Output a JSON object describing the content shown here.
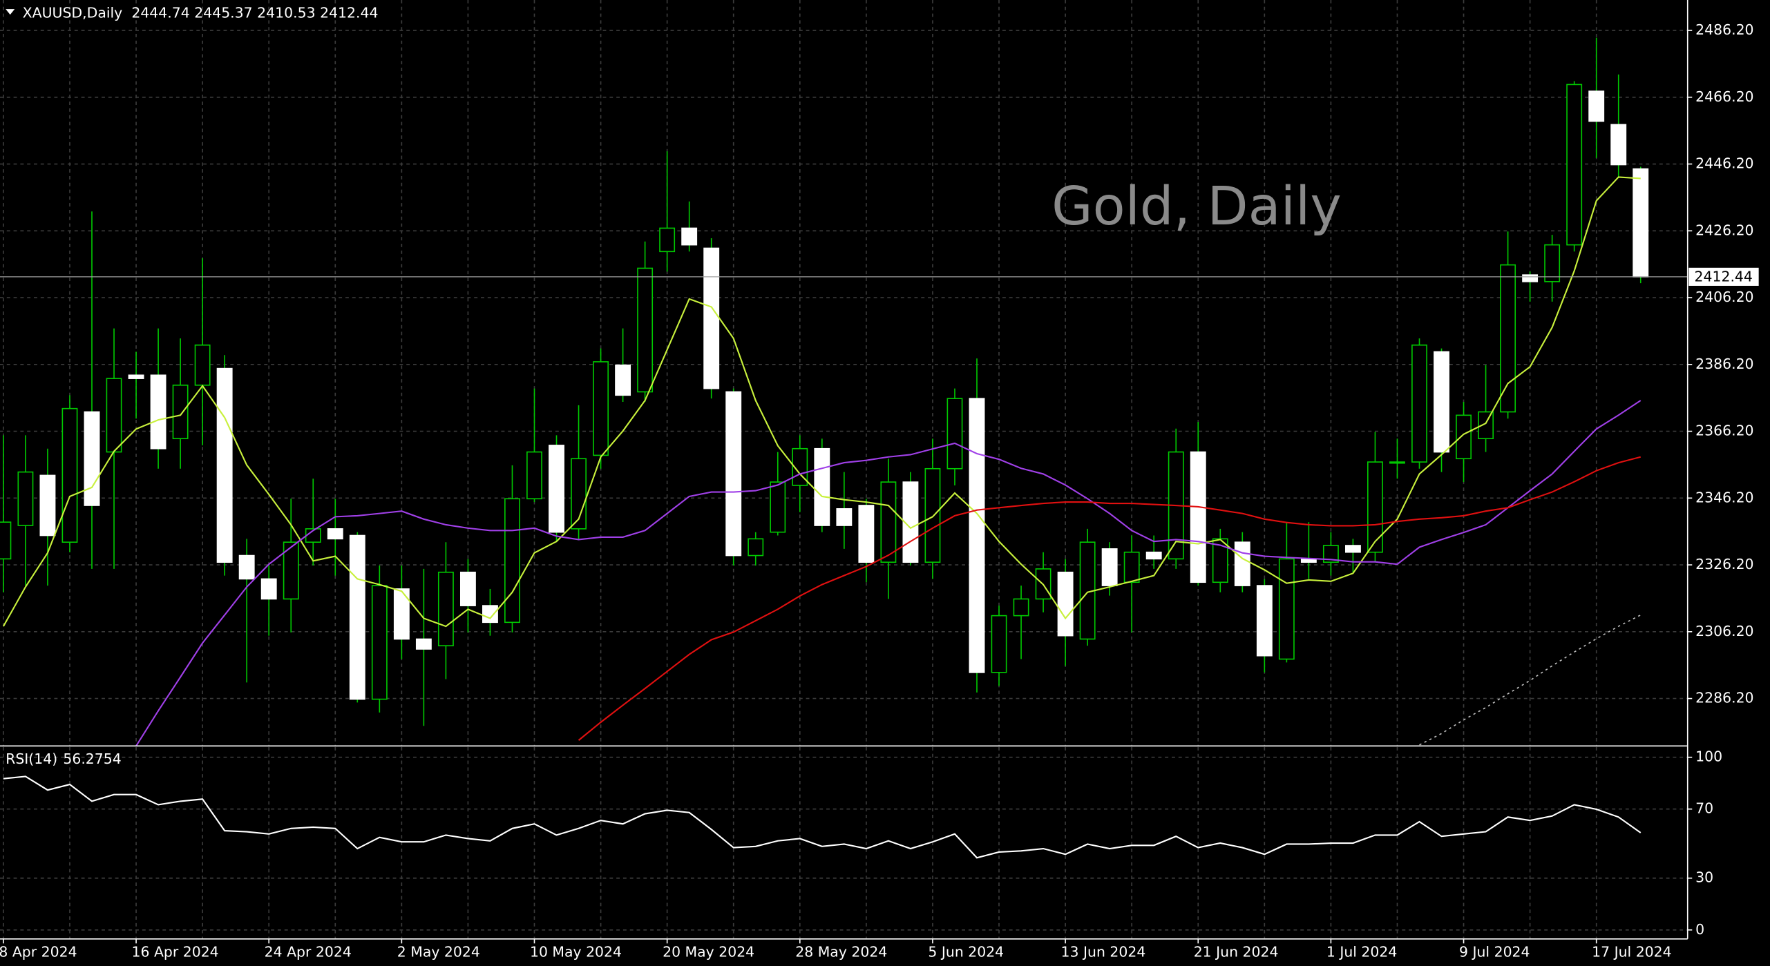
{
  "chart_data": [
    {
      "type": "candlestick",
      "symbol": "XAUUSD,Daily",
      "watermark": "Gold, Daily",
      "categories": [
        "8 Apr 2024",
        null,
        null,
        null,
        null,
        null,
        "16 Apr 2024",
        null,
        null,
        null,
        null,
        null,
        "24 Apr 2024",
        null,
        null,
        null,
        null,
        null,
        "2 May 2024",
        null,
        null,
        null,
        null,
        null,
        "10 May 2024",
        null,
        null,
        null,
        null,
        null,
        "20 May 2024",
        null,
        null,
        null,
        null,
        null,
        "28 May 2024",
        null,
        null,
        null,
        null,
        null,
        "5 Jun 2024",
        null,
        null,
        null,
        null,
        null,
        "13 Jun 2024",
        null,
        null,
        null,
        null,
        null,
        "21 Jun 2024",
        null,
        null,
        null,
        null,
        null,
        "1 Jul 2024",
        null,
        null,
        null,
        null,
        null,
        "9 Jul 2024",
        null,
        null,
        null,
        null,
        null,
        "17 Jul 2024",
        null,
        null
      ],
      "open": [
        2328,
        2338,
        2353,
        2333,
        2372,
        2360,
        2383,
        2383,
        2364,
        2380,
        2385,
        2329,
        2322,
        2316,
        2333,
        2337,
        2335,
        2286,
        2319,
        2304,
        2302,
        2324,
        2314,
        2309,
        2346,
        2362,
        2337,
        2359,
        2386,
        2378,
        2420,
        2427,
        2421,
        2378,
        2329,
        2336,
        2350,
        2361,
        2343,
        2344,
        2327,
        2351,
        2327,
        2355,
        2376,
        2294,
        2311,
        2316,
        2324,
        2304,
        2331,
        2321,
        2330,
        2328,
        2360,
        2321,
        2333,
        2320,
        2298,
        2328,
        2327,
        2332,
        2330,
        2357,
        2357,
        2390,
        2358,
        2364,
        2372,
        2413,
        2411,
        2422,
        2468,
        2458,
        2444.74
      ],
      "high": [
        2365,
        2365,
        2361,
        2377,
        2432,
        2397,
        2390,
        2397,
        2394,
        2418,
        2389,
        2334,
        2326,
        2346,
        2352,
        2346,
        2336,
        2326,
        2326,
        2325,
        2333,
        2328,
        2319,
        2356,
        2379,
        2365,
        2374,
        2391,
        2397,
        2423,
        2450,
        2435,
        2424,
        2379,
        2336,
        2360,
        2365,
        2364,
        2354,
        2346,
        2358,
        2354,
        2364,
        2379,
        2388,
        2314,
        2320,
        2330,
        2328,
        2337,
        2333,
        2335,
        2335,
        2367,
        2369,
        2337,
        2336,
        2322,
        2339,
        2339,
        2336,
        2334,
        2366,
        2364,
        2394,
        2391,
        2375,
        2386,
        2426,
        2414,
        2425,
        2471,
        2484,
        2473,
        2445.37
      ],
      "low": [
        2318,
        2320,
        2320,
        2330,
        2325,
        2325,
        2370,
        2355,
        2355,
        2362,
        2323,
        2291,
        2305,
        2306,
        2326,
        2323,
        2285,
        2282,
        2298,
        2278,
        2292,
        2306,
        2305,
        2306,
        2345,
        2333,
        2334,
        2355,
        2375,
        2375,
        2414,
        2420,
        2376,
        2326,
        2326,
        2335,
        2342,
        2336,
        2331,
        2321,
        2316,
        2326,
        2322,
        2350,
        2288,
        2290,
        2298,
        2312,
        2296,
        2302,
        2317,
        2306,
        2325,
        2325,
        2320,
        2318,
        2318,
        2294,
        2297,
        2322,
        2323,
        2324,
        2327,
        2352,
        2355,
        2354,
        2351,
        2360,
        2370,
        2405,
        2405,
        2420,
        2448,
        2442,
        2410.53
      ],
      "close": [
        2339,
        2354,
        2335,
        2373,
        2344,
        2382,
        2382,
        2361,
        2380,
        2392,
        2327,
        2322,
        2316,
        2333,
        2337,
        2334,
        2286,
        2320,
        2304,
        2301,
        2324,
        2314,
        2309,
        2346,
        2360,
        2336,
        2358,
        2387,
        2377,
        2415,
        2427,
        2422,
        2379,
        2329,
        2334,
        2351,
        2361,
        2338,
        2338,
        2327,
        2351,
        2327,
        2355,
        2376,
        2294,
        2311,
        2316,
        2325,
        2305,
        2333,
        2320,
        2330,
        2328,
        2360,
        2321,
        2334,
        2320,
        2299,
        2328,
        2327,
        2332,
        2330,
        2357,
        2357,
        2392,
        2360,
        2371,
        2372,
        2416,
        2411,
        2422,
        2470,
        2459,
        2446,
        2412.44
      ],
      "up_fill": "#000000",
      "down_fill": "#ffffff",
      "candle_line": "#00c800",
      "series": [
        {
          "color": "#c8f03c",
          "dash": "solid",
          "values": [
            2307.8,
            2319.6,
            2329.8,
            2346.7,
            2349.4,
            2360.2,
            2366.9,
            2369.6,
            2371.0,
            2379.8,
            2370.3,
            2356.1,
            2347.3,
            2338.2,
            2327.4,
            2328.8,
            2322.0,
            2320.3,
            2318.3,
            2310.2,
            2307.8,
            2312.9,
            2310.2,
            2318.0,
            2329.8,
            2333.2,
            2339.9,
            2358.5,
            2366.3,
            2375.4,
            2390.6,
            2405.8,
            2403.4,
            2394.0,
            2375.4,
            2361.9,
            2353.4,
            2346.7,
            2345.7,
            2345.0,
            2344.0,
            2337.2,
            2340.6,
            2347.7,
            2341.6,
            2333.2,
            2326.4,
            2320.3,
            2310.2,
            2318.0,
            2319.6,
            2321.3,
            2323.0,
            2333.2,
            2332.5,
            2333.8,
            2328.1,
            2324.7,
            2320.7,
            2321.7,
            2321.3,
            2323.7,
            2333.2,
            2339.9,
            2353.4,
            2359.2,
            2365.3,
            2368.6,
            2380.5,
            2385.5,
            2397.3,
            2414.2,
            2435.2,
            2442.3,
            2441.9
          ]
        },
        {
          "color": "#a040e8",
          "dash": "solid",
          "values": [
            null,
            null,
            null,
            null,
            null,
            null,
            2272.0,
            2282.5,
            2292.6,
            2302.8,
            2311.2,
            2319.6,
            2326.4,
            2331.5,
            2336.5,
            2340.6,
            2340.9,
            2341.6,
            2342.3,
            2339.9,
            2338.2,
            2337.2,
            2336.5,
            2336.5,
            2337.2,
            2334.8,
            2333.8,
            2334.5,
            2334.5,
            2336.5,
            2341.6,
            2346.7,
            2348.0,
            2348.0,
            2348.4,
            2350.1,
            2353.4,
            2355.1,
            2356.8,
            2357.5,
            2358.5,
            2359.2,
            2360.9,
            2362.6,
            2359.5,
            2357.8,
            2355.1,
            2353.4,
            2350.1,
            2346.0,
            2341.6,
            2336.5,
            2333.2,
            2333.8,
            2333.2,
            2332.1,
            2329.8,
            2328.8,
            2328.4,
            2328.1,
            2327.8,
            2327.1,
            2327.1,
            2326.4,
            2331.5,
            2333.8,
            2335.9,
            2338.2,
            2343.3,
            2348.4,
            2353.4,
            2360.2,
            2366.9,
            2371.0,
            2375.4
          ]
        },
        {
          "color": "#e01010",
          "dash": "solid",
          "values": [
            null,
            null,
            null,
            null,
            null,
            null,
            null,
            null,
            null,
            null,
            null,
            null,
            null,
            null,
            null,
            null,
            null,
            null,
            null,
            null,
            null,
            null,
            null,
            null,
            null,
            null,
            2273.7,
            2279.1,
            2284.2,
            2289.2,
            2294.3,
            2299.4,
            2303.8,
            2306.1,
            2309.5,
            2312.9,
            2316.9,
            2320.3,
            2323.0,
            2325.7,
            2329.1,
            2333.2,
            2337.2,
            2340.9,
            2342.6,
            2343.3,
            2344.0,
            2344.6,
            2345.0,
            2345.0,
            2344.6,
            2344.6,
            2344.3,
            2344.0,
            2343.6,
            2342.6,
            2341.6,
            2339.9,
            2338.9,
            2338.2,
            2337.9,
            2337.9,
            2338.2,
            2339.2,
            2339.9,
            2340.3,
            2340.9,
            2342.3,
            2343.3,
            2345.7,
            2348.0,
            2351.1,
            2354.4,
            2356.8,
            2358.5
          ]
        },
        {
          "color": "#c0c0c0",
          "dash": "dotted",
          "values": [
            null,
            null,
            null,
            null,
            null,
            null,
            null,
            null,
            null,
            null,
            null,
            null,
            null,
            null,
            null,
            null,
            null,
            null,
            null,
            null,
            null,
            null,
            null,
            null,
            null,
            null,
            null,
            null,
            null,
            null,
            null,
            null,
            null,
            null,
            null,
            null,
            null,
            null,
            null,
            null,
            null,
            null,
            null,
            null,
            null,
            null,
            null,
            null,
            null,
            null,
            null,
            null,
            null,
            null,
            null,
            null,
            null,
            null,
            null,
            null,
            null,
            null,
            null,
            null,
            2272.3,
            2275.7,
            2279.8,
            2283.5,
            2287.6,
            2291.6,
            2296.0,
            2300.1,
            2304.1,
            2307.8,
            2311.2
          ]
        }
      ],
      "ylim": [
        2272.0,
        2495.3
      ],
      "yticks": [
        {
          "value": 2286.2,
          "label": "2286.20"
        },
        {
          "value": 2306.2,
          "label": "2306.20"
        },
        {
          "value": 2326.2,
          "label": "2326.20"
        },
        {
          "value": 2346.2,
          "label": "2346.20"
        },
        {
          "value": 2366.2,
          "label": "2366.20"
        },
        {
          "value": 2386.2,
          "label": "2386.20"
        },
        {
          "value": 2406.2,
          "label": "2406.20"
        },
        {
          "value": 2426.2,
          "label": "2426.20"
        },
        {
          "value": 2446.2,
          "label": "2446.20"
        },
        {
          "value": 2466.2,
          "label": "2466.20"
        },
        {
          "value": 2486.2,
          "label": "2486.20"
        }
      ],
      "grid": true
    },
    {
      "type": "line",
      "title": "RSI(14)",
      "color": "#ffffff",
      "values": [
        87.6,
        88.9,
        81.0,
        84.3,
        74.5,
        78.4,
        78.4,
        72.5,
        74.5,
        75.8,
        57.5,
        56.9,
        55.6,
        58.8,
        59.5,
        58.8,
        47.1,
        53.6,
        51.0,
        51.0,
        54.9,
        52.9,
        51.6,
        58.8,
        61.4,
        54.9,
        58.8,
        63.4,
        61.4,
        67.3,
        69.3,
        68.0,
        58.2,
        47.7,
        48.4,
        51.6,
        52.9,
        48.4,
        49.7,
        47.1,
        51.6,
        47.1,
        51.0,
        55.6,
        41.8,
        45.1,
        45.8,
        47.1,
        43.8,
        49.7,
        47.1,
        49.0,
        49.0,
        54.2,
        47.7,
        50.3,
        47.7,
        43.8,
        49.7,
        49.7,
        50.3,
        50.3,
        54.9,
        54.9,
        62.7,
        54.2,
        55.6,
        56.9,
        65.4,
        63.4,
        66.0,
        72.5,
        69.9,
        65.4,
        56.2754
      ],
      "ylim": [
        -5.2,
        105.9
      ],
      "yticks": [
        0,
        30,
        70,
        100
      ],
      "grid": true
    }
  ]
}
